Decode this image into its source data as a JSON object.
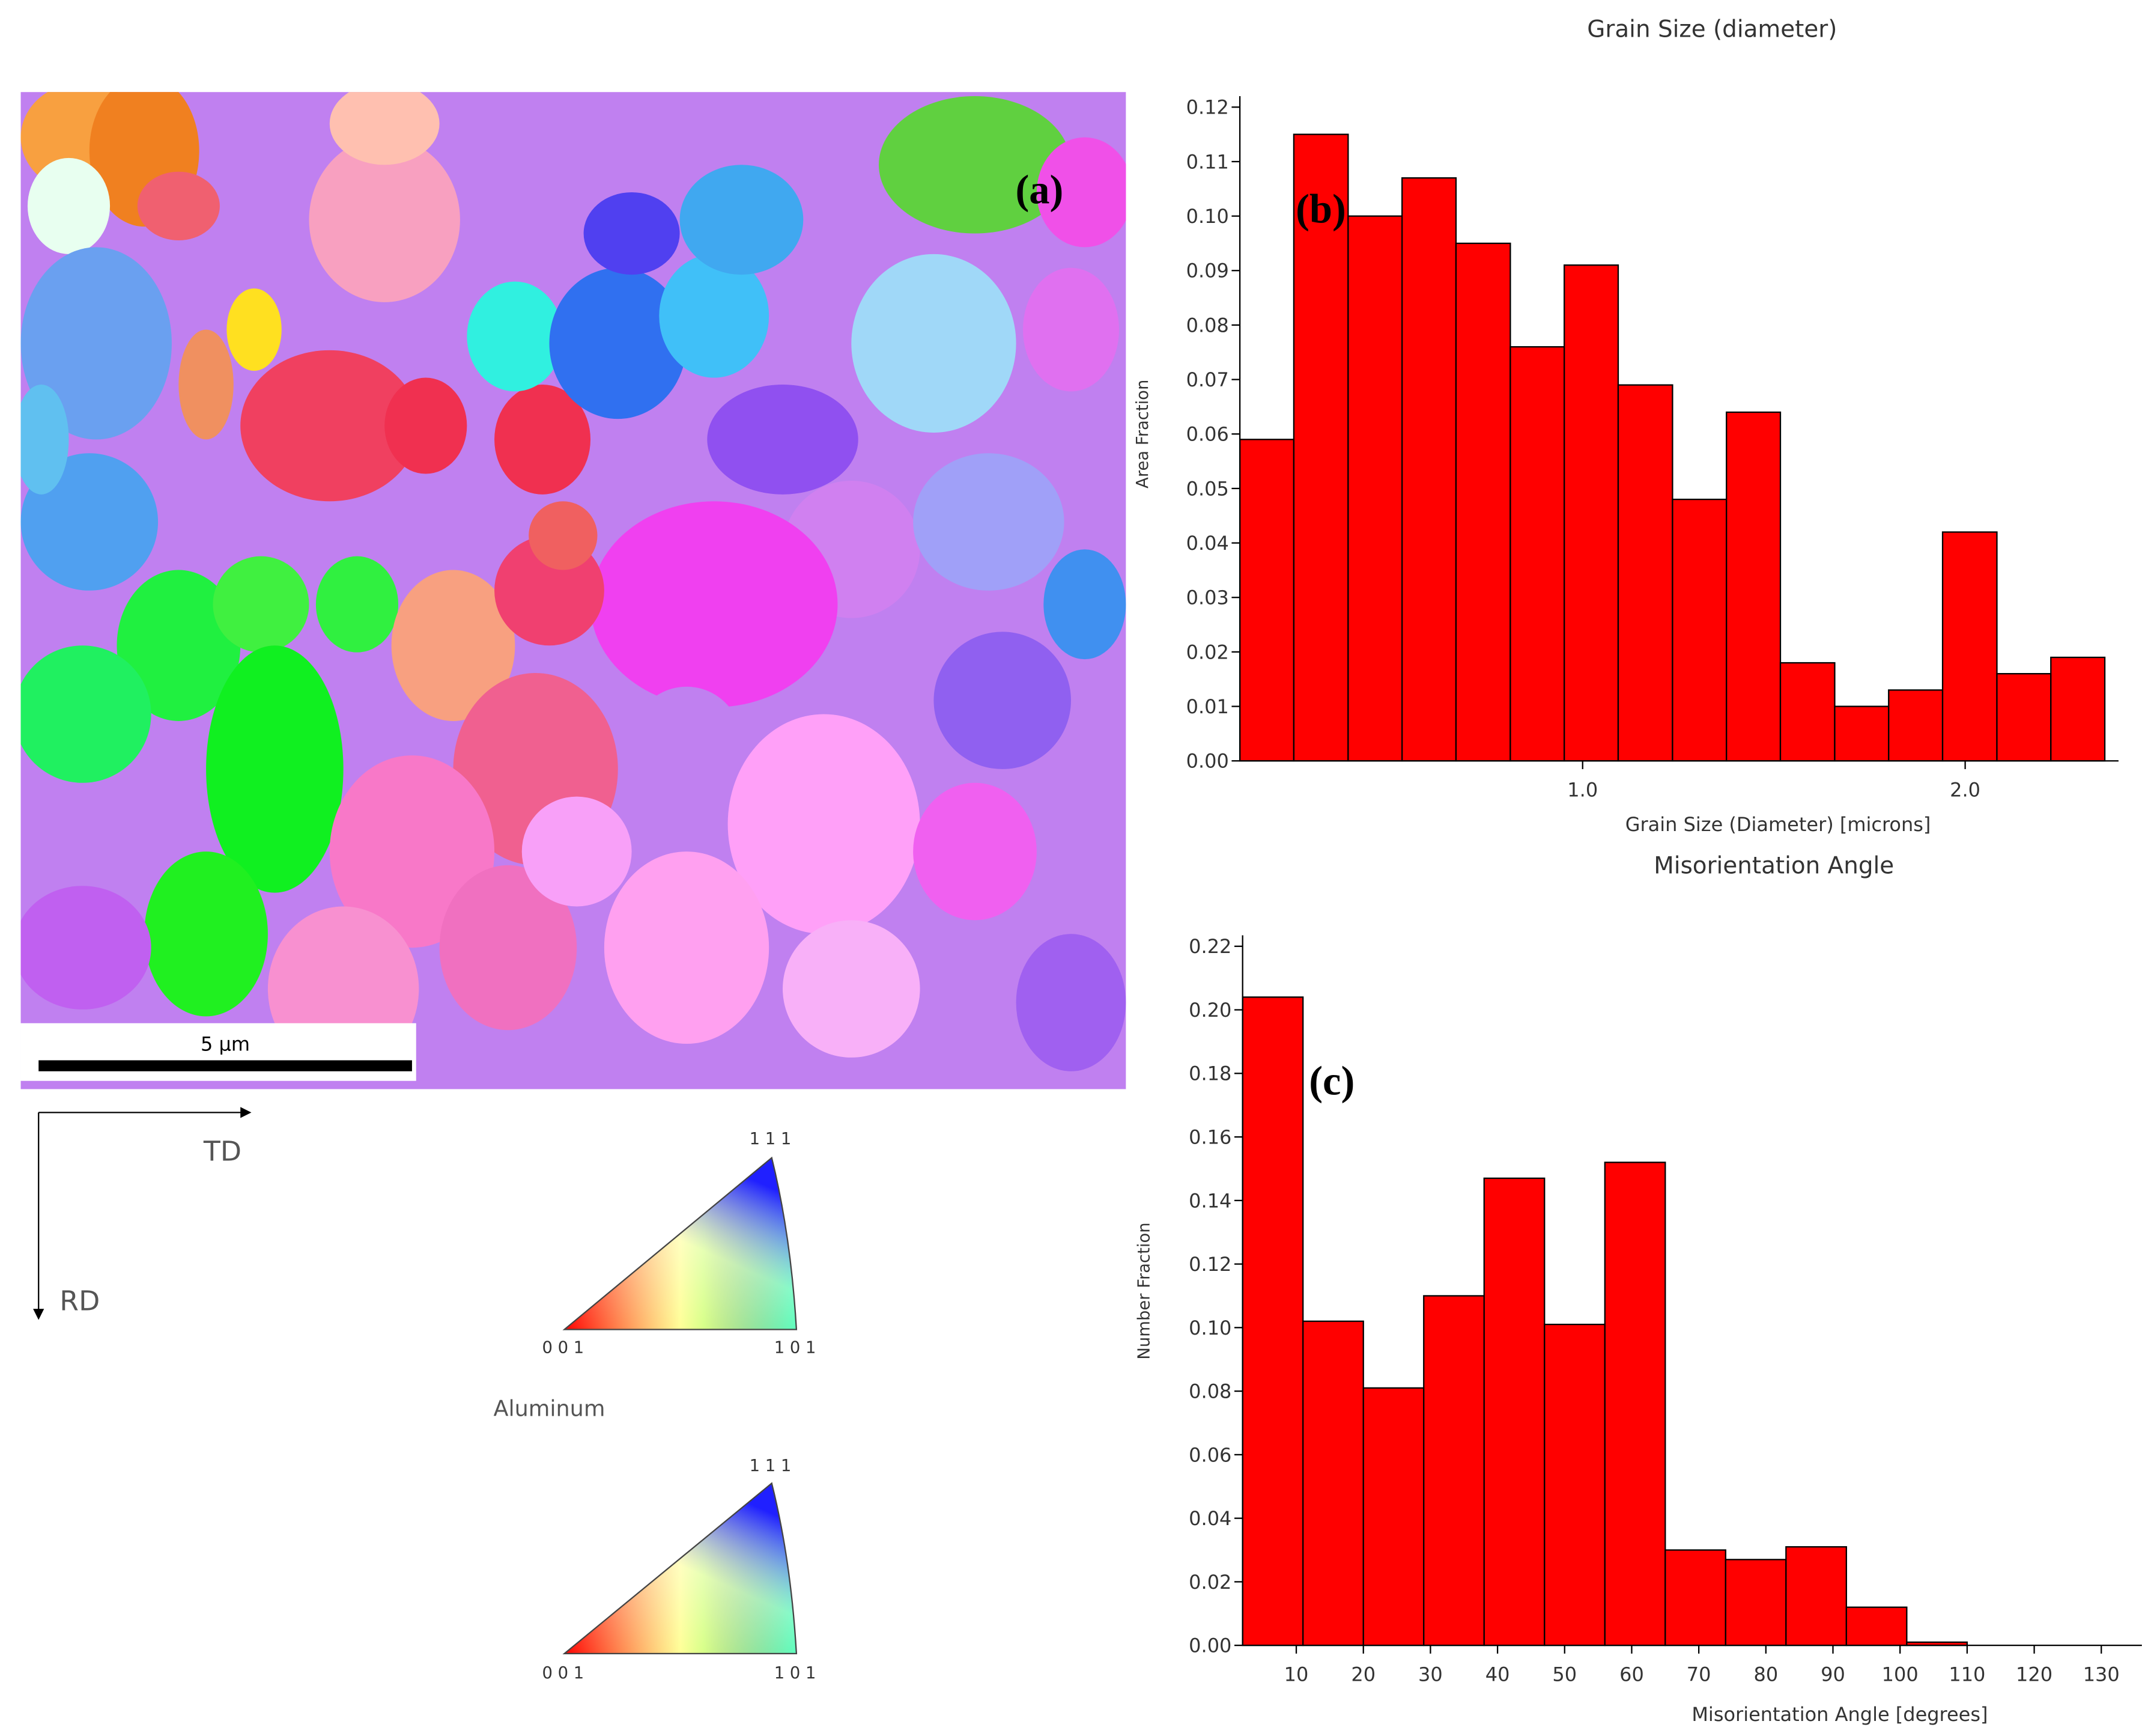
{
  "map_panel": {
    "label": "(a)",
    "scale_bar": "5 μm",
    "axes": {
      "x": "TD",
      "y": "RD"
    },
    "legend": {
      "material": "Aluminum",
      "triangles": [
        {
          "top": "1 1 1",
          "left": "0 0 1",
          "right": "1 0 1"
        },
        {
          "top": "1 1 1",
          "left": "0 0 1",
          "right": "1 0 1"
        }
      ]
    }
  },
  "chart_data": [
    {
      "type": "histogram",
      "title": "Grain Size (diameter)",
      "x_label": "Grain Size (Diameter) [microns]",
      "y_label": "Area Fraction",
      "annotation": "(b)",
      "bins": [
        0.104,
        0.245,
        0.387,
        0.528,
        0.669,
        0.811,
        0.952,
        1.093,
        1.235,
        1.376,
        1.517,
        1.659,
        1.8,
        1.941,
        2.083,
        2.224,
        2.365
      ],
      "values": [
        0.059,
        0.115,
        0.1,
        0.107,
        0.095,
        0.076,
        0.091,
        0.069,
        0.048,
        0.064,
        0.018,
        0.01,
        0.013,
        0.042,
        0.016,
        0.019
      ],
      "color": "#ff0000",
      "xlim": [
        0.104,
        2.365
      ],
      "xticks": [
        {
          "value": 1,
          "label": "1.0"
        },
        {
          "value": 2,
          "label": "2.0"
        }
      ],
      "ylim": [
        0,
        0.12
      ],
      "yticks": [
        {
          "value": 0,
          "label": "0.00"
        },
        {
          "value": 0.01,
          "label": "0.01"
        },
        {
          "value": 0.02,
          "label": "0.02"
        },
        {
          "value": 0.03,
          "label": "0.03"
        },
        {
          "value": 0.04,
          "label": "0.04"
        },
        {
          "value": 0.05,
          "label": "0.05"
        },
        {
          "value": 0.06,
          "label": "0.06"
        },
        {
          "value": 0.07,
          "label": "0.07"
        },
        {
          "value": 0.08,
          "label": "0.08"
        },
        {
          "value": 0.09,
          "label": "0.09"
        },
        {
          "value": 0.1,
          "label": "0.10"
        },
        {
          "value": 0.11,
          "label": "0.11"
        },
        {
          "value": 0.12,
          "label": "0.12"
        }
      ]
    },
    {
      "type": "histogram",
      "title": "Misorientation Angle",
      "x_label": "Misorientation Angle [degrees]",
      "y_label": "Number Fraction",
      "annotation": "(c)",
      "bins": [
        2,
        11,
        20,
        29,
        38,
        47,
        56,
        65,
        74,
        83,
        92,
        101,
        110
      ],
      "values": [
        0.204,
        0.102,
        0.081,
        0.11,
        0.147,
        0.101,
        0.152,
        0.03,
        0.027,
        0.031,
        0.012,
        0.001
      ],
      "color": "#ff0000",
      "xlim": [
        2,
        134
      ],
      "xticks": [
        10,
        20,
        30,
        40,
        50,
        60,
        70,
        80,
        90,
        100,
        110,
        120,
        130
      ],
      "ylim": [
        0,
        0.22
      ],
      "yticks": [
        {
          "value": 0,
          "label": "0.00"
        },
        {
          "value": 0.02,
          "label": "0.02"
        },
        {
          "value": 0.04,
          "label": "0.04"
        },
        {
          "value": 0.06,
          "label": "0.06"
        },
        {
          "value": 0.08,
          "label": "0.08"
        },
        {
          "value": 0.1,
          "label": "0.10"
        },
        {
          "value": 0.12,
          "label": "0.12"
        },
        {
          "value": 0.14,
          "label": "0.14"
        },
        {
          "value": 0.16,
          "label": "0.16"
        },
        {
          "value": 0.18,
          "label": "0.18"
        },
        {
          "value": 0.2,
          "label": "0.20"
        },
        {
          "value": 0.22,
          "label": "0.22"
        }
      ]
    }
  ]
}
